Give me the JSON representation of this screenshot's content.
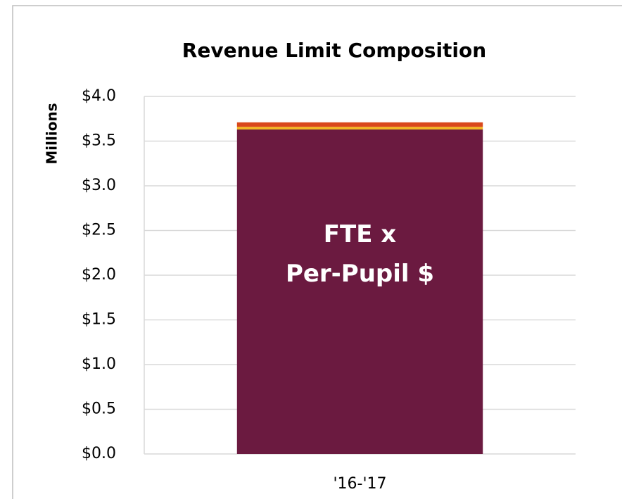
{
  "chart_data": {
    "type": "stacked_bar",
    "title": "Revenue Limit Composition",
    "ylabel": "Millions",
    "categories": [
      "'16-'17"
    ],
    "series": [
      {
        "color": "#6b1a40",
        "values": [
          3.63
        ]
      },
      {
        "color": "#f2b623",
        "values": [
          0.03
        ]
      },
      {
        "color": "#d9481c",
        "values": [
          0.05
        ]
      }
    ],
    "annotation": [
      "FTE x",
      "Per-Pupil $"
    ],
    "ylim": [
      0,
      4
    ],
    "yticks": [
      {
        "value": 0,
        "label": "$0.0"
      },
      {
        "value": 0.5,
        "label": "$0.5"
      },
      {
        "value": 1,
        "label": "$1.0"
      },
      {
        "value": 1.5,
        "label": "$1.5"
      },
      {
        "value": 2,
        "label": "$2.0"
      },
      {
        "value": 2.5,
        "label": "$2.5"
      },
      {
        "value": 3,
        "label": "$3.0"
      },
      {
        "value": 3.5,
        "label": "$3.5"
      },
      {
        "value": 4,
        "label": "$4.0"
      }
    ],
    "grid": true
  }
}
